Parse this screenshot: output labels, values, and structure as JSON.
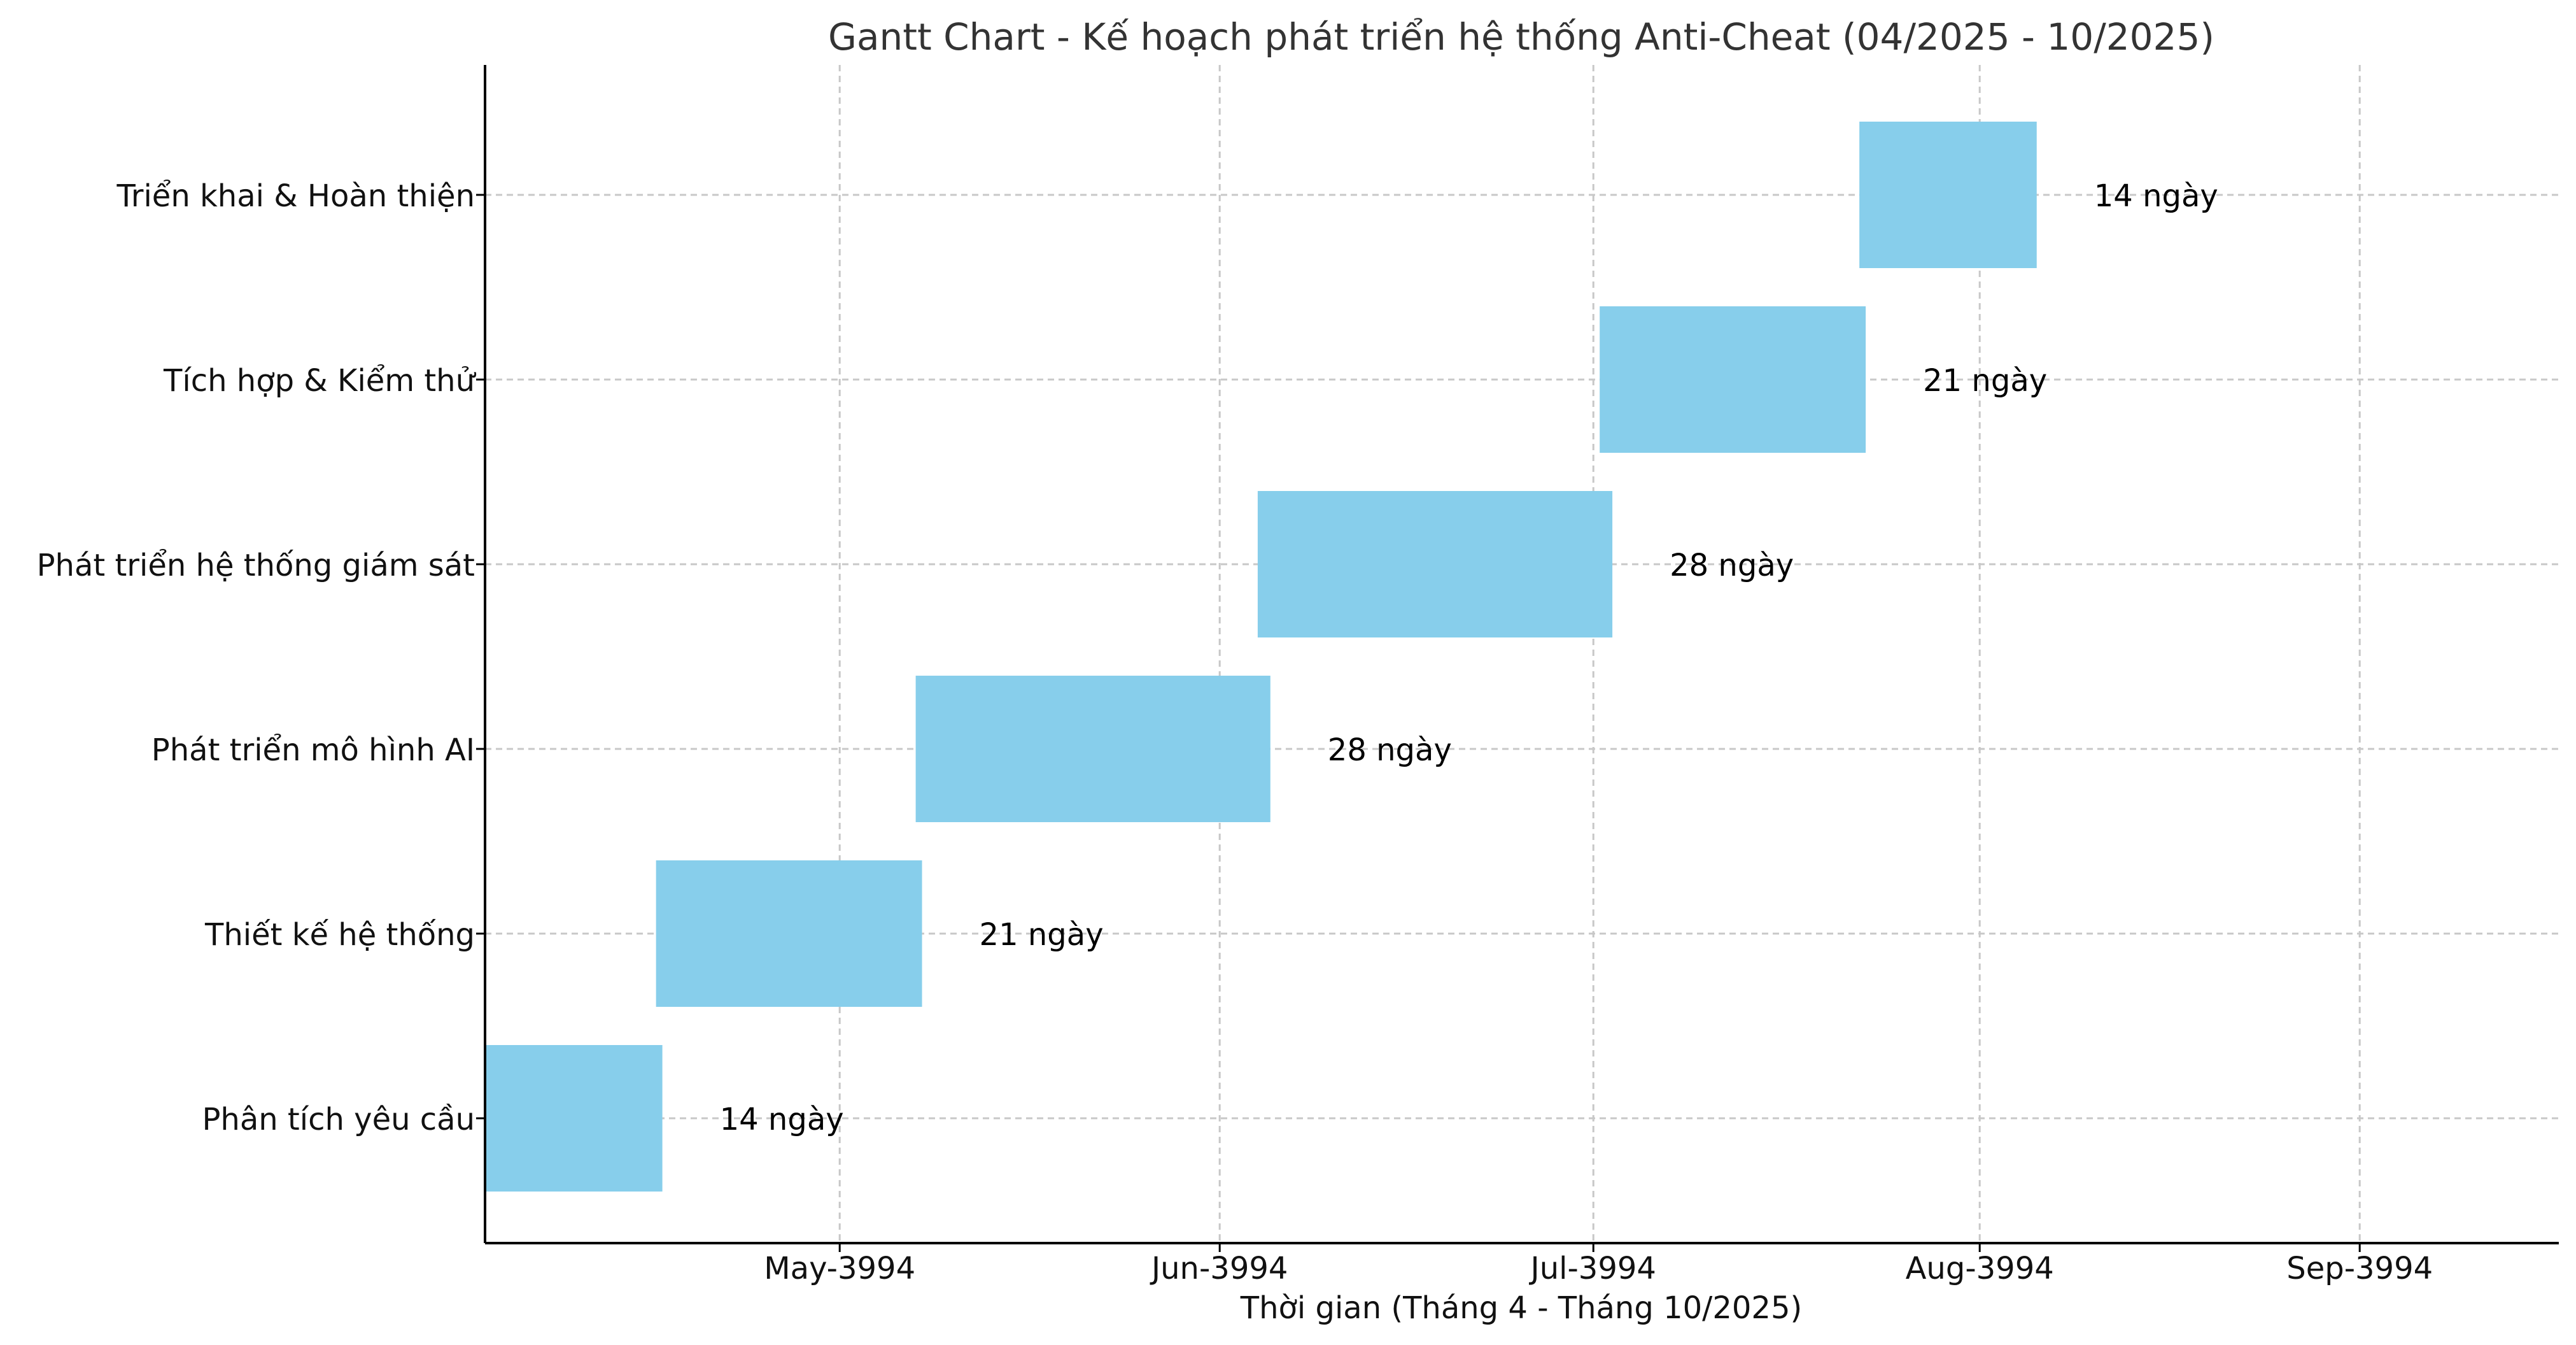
{
  "chart_data": {
    "type": "bar",
    "orientation": "horizontal-gantt",
    "title": "Gantt Chart - Kế hoạch phát triển hệ thống Anti-Cheat (04/2025 - 10/2025)",
    "xlabel": "Thời gian (Tháng 4 - Tháng 10/2025)",
    "ylabel": "",
    "xlim_days": [
      0,
      175
    ],
    "grid": true,
    "bar_color": "#87CEEB",
    "x_ticks": [
      {
        "label": "May-3994",
        "day": 28
      },
      {
        "label": "Jun-3994",
        "day": 58
      },
      {
        "label": "Jul-3994",
        "day": 87.5
      },
      {
        "label": "Aug-3994",
        "day": 118
      },
      {
        "label": "Sep-3994",
        "day": 148
      }
    ],
    "tasks": [
      {
        "name": "Phân tích yêu cầu",
        "start_day": 0,
        "duration_days": 14,
        "duration_label": "14 ngày"
      },
      {
        "name": "Thiết kế hệ thống",
        "start_day": 13.5,
        "duration_days": 21,
        "duration_label": "21 ngày"
      },
      {
        "name": "Phát triển mô hình AI",
        "start_day": 34,
        "duration_days": 28,
        "duration_label": "28 ngày"
      },
      {
        "name": "Phát triển hệ thống giám sát",
        "start_day": 61,
        "duration_days": 28,
        "duration_label": "28 ngày"
      },
      {
        "name": "Tích hợp & Kiểm thử",
        "start_day": 88,
        "duration_days": 21,
        "duration_label": "21 ngày"
      },
      {
        "name": "Triển khai & Hoàn thiện",
        "start_day": 108.5,
        "duration_days": 14,
        "duration_label": "14 ngày"
      }
    ]
  }
}
